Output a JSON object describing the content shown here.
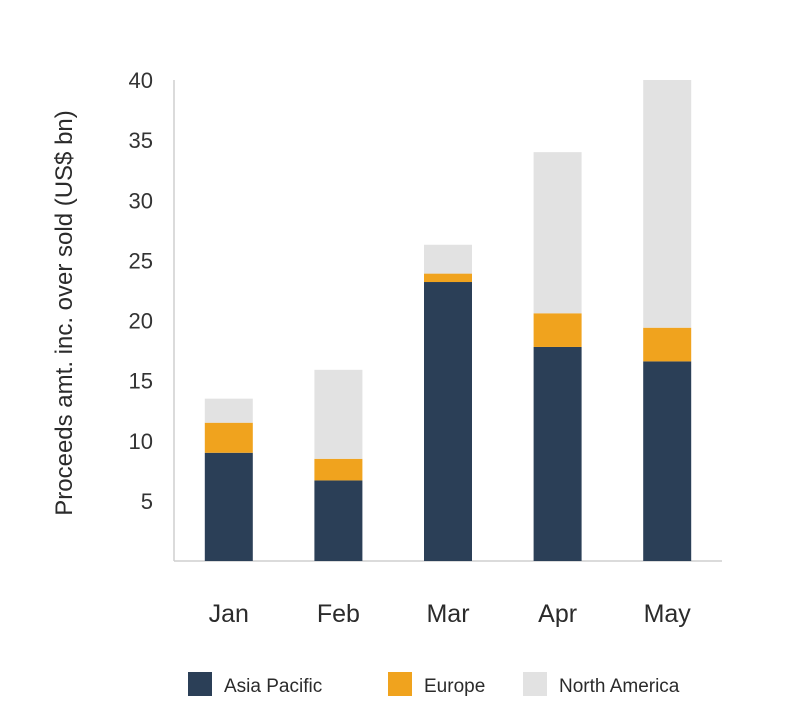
{
  "chart_data": {
    "type": "bar",
    "stacked": true,
    "title": "",
    "xlabel": "",
    "ylabel": "Proceeds amt. inc. over sold (US$ bn)",
    "ylim": [
      0,
      40
    ],
    "yticks": [
      "5",
      "10",
      "15",
      "20",
      "25",
      "30",
      "35",
      "40"
    ],
    "categories": [
      "Jan",
      "Feb",
      "Mar",
      "Apr",
      "May"
    ],
    "series": [
      {
        "name": "Asia Pacific",
        "color": "#2b3f57",
        "values": [
          9.0,
          6.7,
          23.2,
          17.8,
          16.6
        ]
      },
      {
        "name": "Europe",
        "color": "#f0a31e",
        "values": [
          2.5,
          1.8,
          0.7,
          2.8,
          2.8
        ]
      },
      {
        "name": "North America",
        "color": "#e2e2e2",
        "values": [
          2.0,
          7.4,
          2.4,
          13.4,
          20.6
        ]
      }
    ],
    "grid": false,
    "legend_position": "bottom"
  }
}
